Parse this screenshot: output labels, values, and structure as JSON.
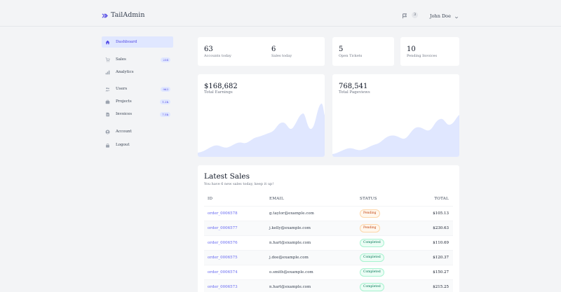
{
  "header": {
    "logo_text": "TailAdmin",
    "notifications_count": "3",
    "user_name": "John Doe"
  },
  "sidebar": {
    "items": [
      {
        "label": "Dashboard",
        "icon": "home-icon",
        "count": ""
      },
      {
        "label": "Sales",
        "icon": "cart-icon",
        "count": "234"
      },
      {
        "label": "Analytics",
        "icon": "bar-chart-icon",
        "count": ""
      },
      {
        "label": "Users",
        "icon": "users-icon",
        "count": "963"
      },
      {
        "label": "Projects",
        "icon": "briefcase-icon",
        "count": "1.2k"
      },
      {
        "label": "Invoices",
        "icon": "document-icon",
        "count": "7.5k"
      },
      {
        "label": "Account",
        "icon": "user-icon",
        "count": ""
      },
      {
        "label": "Logout",
        "icon": "lock-icon",
        "count": ""
      }
    ]
  },
  "stats": [
    {
      "value": "63",
      "label": "Accounts today"
    },
    {
      "value": "6",
      "label": "Sales today"
    },
    {
      "value": "5",
      "label": "Open Tickets"
    },
    {
      "value": "10",
      "label": "Pending Invoices"
    }
  ],
  "earnings": {
    "value": "$168,682",
    "label": "Total Earnings"
  },
  "pageviews": {
    "value": "768,541",
    "label": "Total Pageviews"
  },
  "sales": {
    "title": "Latest Sales",
    "subtitle": "You have 6 new sales today, keep it up!",
    "columns": [
      "ID",
      "EMAIL",
      "STATUS",
      "TOTAL"
    ],
    "rows": [
      {
        "id": "order_0006578",
        "email": "g.taylor@example.com",
        "status": "Pending",
        "total": "$105.13"
      },
      {
        "id": "order_0006577",
        "email": "j.kelly@example.com",
        "status": "Pending",
        "total": "$230.63"
      },
      {
        "id": "order_0006576",
        "email": "n.hart@example.com",
        "status": "Completed",
        "total": "$110.69"
      },
      {
        "id": "order_0006575",
        "email": "j.doe@example.com",
        "status": "Completed",
        "total": "$120.37"
      },
      {
        "id": "order_0006574",
        "email": "o.smith@example.com",
        "status": "Completed",
        "total": "$150.27"
      },
      {
        "id": "order_0006573",
        "email": "n.hart@example.com",
        "status": "Completed",
        "total": "$215.25"
      }
    ]
  },
  "colors": {
    "accent": "#4f46e5",
    "area_fill": "#e0e7ff",
    "pending": "#c2410c",
    "completed": "#047857"
  }
}
